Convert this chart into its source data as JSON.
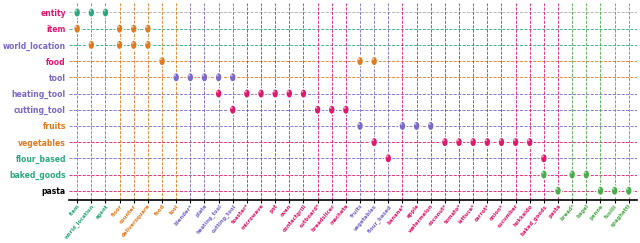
{
  "y_labels": [
    "entity",
    "item",
    "world_location",
    "food",
    "tool",
    "heating_tool",
    "cutting_tool",
    "fruits",
    "vegetables",
    "flour_based",
    "baked_goods",
    "pasta"
  ],
  "y_colors": [
    "#000000",
    "#2ca87e",
    "#2ca87e",
    "#e07a1f",
    "#e07a1f",
    "#7b68c8",
    "#7b68c8",
    "#7b68c8",
    "#e0186c",
    "#7b68c8",
    "#e0186c",
    "#e0186c"
  ],
  "x_labels": [
    "item",
    "world_location",
    "agent",
    "floor",
    "counter",
    "deliversquare",
    "food",
    "tool",
    "blender*",
    "plate",
    "heating_tool",
    "cutting_tool",
    "toaster*",
    "microwave",
    "pot",
    "oven",
    "contactgrill",
    "cutboard*",
    "breadslicer",
    "machete",
    "fruits",
    "vegetables",
    "flour_based",
    "banana*",
    "apple",
    "watermelon",
    "coconut*",
    "tomato*",
    "lettuce*",
    "carrot*",
    "onion*",
    "cucumber",
    "hokkaido",
    "baked_goods",
    "pasta",
    "bread*",
    "bagel",
    "penne",
    "fusilli",
    "spaghetti"
  ],
  "x_colors": [
    "#2ca87e",
    "#2ca87e",
    "#2ca87e",
    "#e07a1f",
    "#e07a1f",
    "#e07a1f",
    "#e07a1f",
    "#e07a1f",
    "#7b68c8",
    "#7b68c8",
    "#7b68c8",
    "#7b68c8",
    "#e0186c",
    "#e0186c",
    "#e0186c",
    "#e0186c",
    "#e0186c",
    "#e0186c",
    "#e0186c",
    "#e0186c",
    "#7b68c8",
    "#7b68c8",
    "#7b68c8",
    "#e0186c",
    "#e0186c",
    "#e0186c",
    "#e0186c",
    "#e0186c",
    "#e0186c",
    "#e0186c",
    "#e0186c",
    "#e0186c",
    "#e0186c",
    "#e0186c",
    "#e0186c",
    "#4aab4a",
    "#4aab4a",
    "#4aab4a",
    "#4aab4a",
    "#4aab4a"
  ],
  "dots": [
    {
      "row": 0,
      "cols": [
        0,
        1,
        2
      ],
      "color": "#2ca87e"
    },
    {
      "row": 1,
      "cols": [
        0,
        3,
        4,
        5
      ],
      "color": "#e07a1f"
    },
    {
      "row": 2,
      "cols": [
        1,
        3,
        4,
        5
      ],
      "color": "#e07a1f"
    },
    {
      "row": 3,
      "cols": [
        6,
        20,
        21
      ],
      "color": "#e07a1f"
    },
    {
      "row": 4,
      "cols": [
        7,
        8,
        9,
        10,
        11
      ],
      "color": "#7b68c8"
    },
    {
      "row": 5,
      "cols": [
        10,
        12,
        13,
        14,
        15,
        16
      ],
      "color": "#e0186c"
    },
    {
      "row": 6,
      "cols": [
        11,
        17,
        18,
        19
      ],
      "color": "#e0186c"
    },
    {
      "row": 7,
      "cols": [
        20,
        23,
        24,
        25
      ],
      "color": "#7b68c8"
    },
    {
      "row": 8,
      "cols": [
        21,
        26,
        27,
        28,
        29,
        30,
        31,
        32
      ],
      "color": "#e0186c"
    },
    {
      "row": 9,
      "cols": [
        22,
        33
      ],
      "color": "#e0186c"
    },
    {
      "row": 10,
      "cols": [
        33,
        35,
        36
      ],
      "color": "#4aab4a"
    },
    {
      "row": 11,
      "cols": [
        34,
        37,
        38,
        39
      ],
      "color": "#4aab4a"
    }
  ],
  "hline_colors": [
    "#b0b0b0",
    "#2ca87e",
    "#2ca87e",
    "#e07a1f",
    "#e07a1f",
    "#7b68c8",
    "#7b68c8",
    "#7b68c8",
    "#e0186c",
    "#7b68c8",
    "#e0186c",
    "#e0186c"
  ],
  "bg_color": "#ffffff",
  "figsize": [
    6.4,
    2.43
  ],
  "dpi": 100
}
